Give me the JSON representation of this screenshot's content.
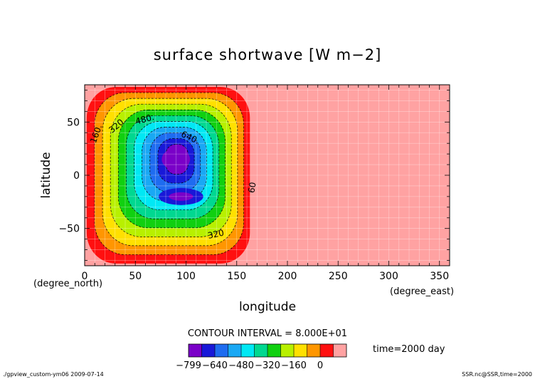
{
  "chart_data": {
    "type": "heatmap",
    "title": "surface shortwave [W m−2]",
    "xlabel": "longitude",
    "ylabel": "latitude",
    "x_unit": "(degree_east)",
    "y_unit": "(degree_north)",
    "xlim": [
      0,
      360
    ],
    "ylim": [
      -85,
      85
    ],
    "x_ticks": [
      0,
      50,
      100,
      150,
      200,
      250,
      300,
      350
    ],
    "y_ticks": [
      -50,
      0,
      50
    ],
    "grid": true,
    "contour_interval_text": "CONTOUR INTERVAL = 8.000E+01",
    "time_text": "time=2000 day",
    "footer_left": "./gpview_custom-ym06   2009-07-14",
    "footer_right": "SSR.nc@SSR,time=2000",
    "colorbar": {
      "levels": [
        -799,
        -720,
        -640,
        -560,
        -480,
        -400,
        -320,
        -240,
        -160,
        -80,
        0
      ],
      "labels": [
        "-799",
        "-640",
        "-480",
        "-320",
        "-160",
        "0"
      ],
      "colors": [
        "#7a00c8",
        "#1818d8",
        "#1e6cf0",
        "#19a8f4",
        "#00e8f4",
        "#00d890",
        "#10d010",
        "#b8f000",
        "#ffe000",
        "#ff9600",
        "#ff1010",
        "#ffa2a2"
      ]
    },
    "contour_labels": [
      "160.",
      "320.",
      "480.",
      "640.",
      "60",
      "320"
    ],
    "field": {
      "background_value": 0,
      "region_lon": [
        0,
        175
      ],
      "region_lat": [
        -85,
        85
      ],
      "minimum_value": -799,
      "minimum_location": [
        90,
        15
      ],
      "secondary_minimum_location": [
        95,
        -20
      ]
    }
  }
}
